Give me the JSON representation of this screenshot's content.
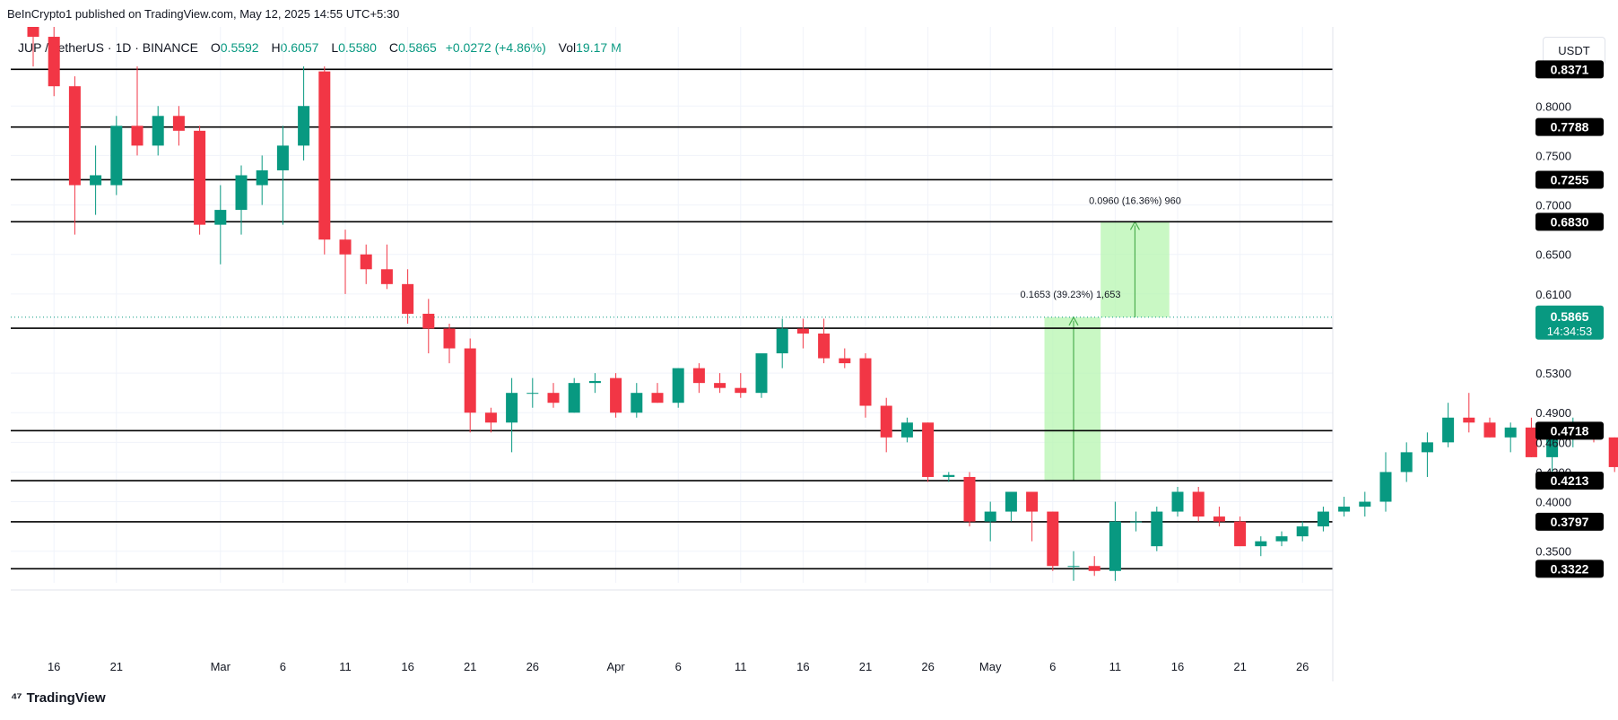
{
  "header": {
    "credit": "BeInCrypto1 published on TradingView.com, May 12, 2025 14:55 UTC+5:30",
    "symbol": "JUP / TetherUS · 1D · BINANCE",
    "open_label": "O",
    "open": "0.5592",
    "high_label": "H",
    "high": "0.6057",
    "low_label": "L",
    "low": "0.5580",
    "close_label": "C",
    "close": "0.5865",
    "change": "+0.0272 (+4.86%)",
    "vol_label": "Vol",
    "volume": "19.17 M",
    "currency": "USDT"
  },
  "footer": {
    "brand": "TradingView",
    "logo": "tradingview-logo-icon"
  },
  "colors": {
    "up": "#089981",
    "down": "#f23645",
    "level": "#000000",
    "projection": "#b7f5b0",
    "arrow": "#4caf50"
  },
  "chart_data": {
    "type": "candlestick",
    "ylim": [
      0.318,
      0.88
    ],
    "x_ticks": [
      {
        "label": "16",
        "i": 1
      },
      {
        "label": "21",
        "i": 4
      },
      {
        "label": "Mar",
        "i": 9
      },
      {
        "label": "6",
        "i": 12
      },
      {
        "label": "11",
        "i": 15
      },
      {
        "label": "16",
        "i": 18
      },
      {
        "label": "21",
        "i": 21
      },
      {
        "label": "26",
        "i": 24
      },
      {
        "label": "Apr",
        "i": 28
      },
      {
        "label": "6",
        "i": 31
      },
      {
        "label": "11",
        "i": 34
      },
      {
        "label": "16",
        "i": 37
      },
      {
        "label": "21",
        "i": 40
      },
      {
        "label": "26",
        "i": 43
      },
      {
        "label": "May",
        "i": 46
      },
      {
        "label": "6",
        "i": 49
      },
      {
        "label": "11",
        "i": 52
      },
      {
        "label": "16",
        "i": 55
      },
      {
        "label": "21",
        "i": 58
      },
      {
        "label": "26",
        "i": 61
      }
    ],
    "y_ticks": [
      "0.8000",
      "0.7500",
      "0.7000",
      "0.6500",
      "0.6100",
      "0.5300",
      "0.4900",
      "0.4600",
      "0.4300",
      "0.4000",
      "0.3500"
    ],
    "levels": [
      "0.8371",
      "0.7788",
      "0.7255",
      "0.6830",
      "0.5754",
      "0.4718",
      "0.4213",
      "0.3797",
      "0.3322"
    ],
    "current_price": "0.5865",
    "countdown": "14:34:53",
    "candles": [
      [
        0.89,
        0.9,
        0.84,
        0.87
      ],
      [
        0.87,
        0.88,
        0.81,
        0.82
      ],
      [
        0.82,
        0.83,
        0.67,
        0.72
      ],
      [
        0.72,
        0.76,
        0.69,
        0.73
      ],
      [
        0.72,
        0.79,
        0.71,
        0.78
      ],
      [
        0.78,
        0.84,
        0.75,
        0.76
      ],
      [
        0.76,
        0.8,
        0.75,
        0.79
      ],
      [
        0.79,
        0.8,
        0.76,
        0.775
      ],
      [
        0.775,
        0.78,
        0.67,
        0.68
      ],
      [
        0.68,
        0.72,
        0.64,
        0.695
      ],
      [
        0.695,
        0.74,
        0.67,
        0.73
      ],
      [
        0.72,
        0.75,
        0.7,
        0.735
      ],
      [
        0.735,
        0.78,
        0.68,
        0.76
      ],
      [
        0.76,
        0.84,
        0.745,
        0.8
      ],
      [
        0.835,
        0.84,
        0.65,
        0.665
      ],
      [
        0.665,
        0.675,
        0.61,
        0.65
      ],
      [
        0.65,
        0.66,
        0.62,
        0.635
      ],
      [
        0.635,
        0.66,
        0.615,
        0.62
      ],
      [
        0.62,
        0.635,
        0.58,
        0.59
      ],
      [
        0.59,
        0.605,
        0.55,
        0.575
      ],
      [
        0.575,
        0.58,
        0.54,
        0.555
      ],
      [
        0.555,
        0.565,
        0.47,
        0.49
      ],
      [
        0.49,
        0.495,
        0.47,
        0.48
      ],
      [
        0.48,
        0.525,
        0.45,
        0.51
      ],
      [
        0.51,
        0.525,
        0.495,
        0.51
      ],
      [
        0.51,
        0.52,
        0.495,
        0.5
      ],
      [
        0.49,
        0.525,
        0.49,
        0.52
      ],
      [
        0.52,
        0.53,
        0.51,
        0.522
      ],
      [
        0.525,
        0.53,
        0.485,
        0.49
      ],
      [
        0.49,
        0.52,
        0.485,
        0.51
      ],
      [
        0.51,
        0.52,
        0.5,
        0.5
      ],
      [
        0.5,
        0.535,
        0.495,
        0.535
      ],
      [
        0.535,
        0.54,
        0.51,
        0.52
      ],
      [
        0.52,
        0.53,
        0.51,
        0.515
      ],
      [
        0.515,
        0.53,
        0.505,
        0.51
      ],
      [
        0.51,
        0.545,
        0.505,
        0.55
      ],
      [
        0.55,
        0.585,
        0.535,
        0.575
      ],
      [
        0.575,
        0.585,
        0.555,
        0.57
      ],
      [
        0.57,
        0.585,
        0.54,
        0.545
      ],
      [
        0.545,
        0.555,
        0.535,
        0.54
      ],
      [
        0.545,
        0.55,
        0.485,
        0.497
      ],
      [
        0.497,
        0.505,
        0.45,
        0.465
      ],
      [
        0.465,
        0.485,
        0.46,
        0.48
      ],
      [
        0.48,
        0.48,
        0.42,
        0.425
      ],
      [
        0.425,
        0.43,
        0.42,
        0.427
      ],
      [
        0.425,
        0.43,
        0.375,
        0.38
      ],
      [
        0.38,
        0.4,
        0.36,
        0.39
      ],
      [
        0.39,
        0.41,
        0.38,
        0.41
      ],
      [
        0.41,
        0.41,
        0.36,
        0.39
      ],
      [
        0.39,
        0.39,
        0.33,
        0.335
      ],
      [
        0.335,
        0.35,
        0.32,
        0.335
      ],
      [
        0.335,
        0.345,
        0.325,
        0.33
      ],
      [
        0.33,
        0.4,
        0.32,
        0.38
      ],
      [
        0.38,
        0.39,
        0.37,
        0.38
      ],
      [
        0.355,
        0.395,
        0.35,
        0.39
      ],
      [
        0.39,
        0.415,
        0.385,
        0.41
      ],
      [
        0.41,
        0.415,
        0.38,
        0.385
      ],
      [
        0.385,
        0.395,
        0.375,
        0.38
      ],
      [
        0.38,
        0.385,
        0.36,
        0.355
      ],
      [
        0.355,
        0.365,
        0.345,
        0.36
      ],
      [
        0.36,
        0.37,
        0.355,
        0.365
      ],
      [
        0.365,
        0.38,
        0.36,
        0.375
      ],
      [
        0.375,
        0.395,
        0.37,
        0.39
      ],
      [
        0.39,
        0.405,
        0.385,
        0.395
      ],
      [
        0.395,
        0.41,
        0.385,
        0.4
      ],
      [
        0.4,
        0.45,
        0.39,
        0.43
      ],
      [
        0.43,
        0.46,
        0.42,
        0.45
      ],
      [
        0.45,
        0.47,
        0.425,
        0.46
      ],
      [
        0.46,
        0.5,
        0.455,
        0.485
      ],
      [
        0.485,
        0.51,
        0.47,
        0.48
      ],
      [
        0.48,
        0.485,
        0.465,
        0.465
      ],
      [
        0.465,
        0.48,
        0.45,
        0.475
      ],
      [
        0.475,
        0.485,
        0.445,
        0.445
      ],
      [
        0.445,
        0.475,
        0.43,
        0.465
      ],
      [
        0.465,
        0.485,
        0.455,
        0.47
      ],
      [
        0.47,
        0.48,
        0.46,
        0.465
      ],
      [
        0.465,
        0.465,
        0.43,
        0.435
      ],
      [
        0.435,
        0.44,
        0.42,
        0.427
      ],
      [
        0.427,
        0.435,
        0.42,
        0.425
      ],
      [
        0.427,
        0.44,
        0.405,
        0.43
      ],
      [
        0.43,
        0.44,
        0.41,
        0.435
      ],
      [
        0.435,
        0.48,
        0.43,
        0.475
      ],
      [
        0.475,
        0.56,
        0.47,
        0.545
      ],
      [
        0.545,
        0.59,
        0.52,
        0.575
      ],
      [
        0.575,
        0.605,
        0.555,
        0.559
      ],
      [
        0.559,
        0.606,
        0.558,
        0.5865
      ]
    ],
    "measure_labels": [
      "0.1653 (39.23%) 1,653",
      "0.0960 (16.36%) 960"
    ]
  }
}
